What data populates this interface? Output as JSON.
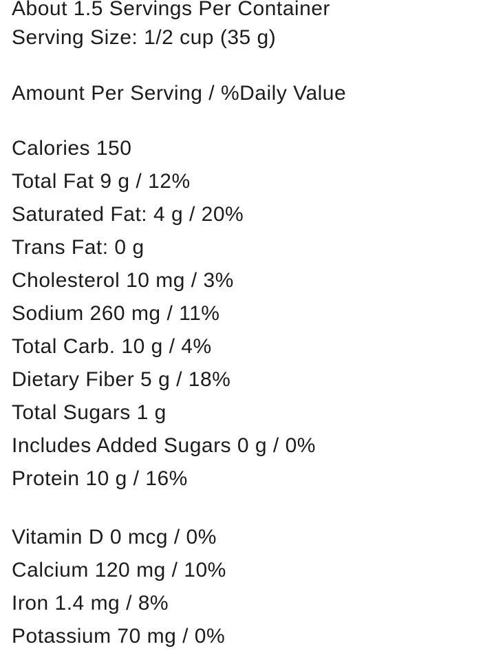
{
  "page": {
    "background_color": "#ffffff",
    "text_color": "#1c1c1e"
  },
  "label": {
    "servings_per_container": "About 1.5 Servings Per Container",
    "serving_size": "Serving Size: 1/2 cup (35 g)",
    "amount_header": "Amount Per Serving / %Daily Value",
    "nutrients": [
      "Calories 150",
      "Total Fat 9 g / 12%",
      "Saturated Fat: 4 g / 20%",
      "Trans Fat: 0 g",
      "Cholesterol 10 mg / 3%",
      "Sodium 260 mg / 11%",
      "Total Carb. 10 g / 4%",
      "Dietary Fiber 5 g / 18%",
      "Total Sugars 1 g",
      "Includes Added Sugars 0 g / 0%",
      "Protein 10 g / 16%"
    ],
    "micronutrients": [
      "Vitamin D 0 mcg / 0%",
      "Calcium 120 mg / 10%",
      "Iron 1.4 mg / 8%",
      "Potassium 70 mg / 0%"
    ]
  }
}
